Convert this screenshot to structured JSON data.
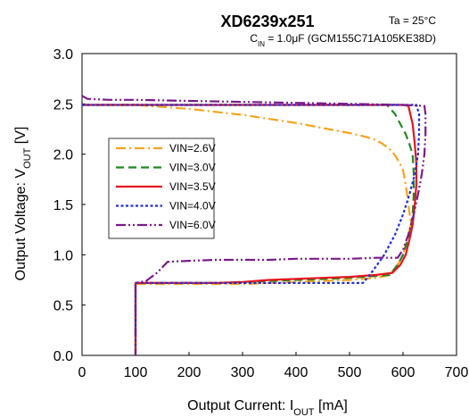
{
  "chart_data": {
    "type": "line",
    "title": "XD6239x251",
    "condition_temperature": "Ta = 25°C",
    "condition_capacitor": {
      "prefix": "C",
      "subscript": "IN",
      "rest": " = 1.0μF (GCM155C71A105KE38D)"
    },
    "xlabel": {
      "prefix": "Output Current: I",
      "subscript": "OUT",
      "suffix": " [mA]"
    },
    "ylabel": {
      "prefix": "Output Voltage: V",
      "subscript": "OUT",
      "suffix": " [V]"
    },
    "xlim": [
      0,
      700
    ],
    "ylim": [
      0,
      3.0
    ],
    "x_ticks": [
      "0",
      "100",
      "200",
      "300",
      "400",
      "500",
      "600",
      "700"
    ],
    "y_ticks": [
      "0.0",
      "0.5",
      "1.0",
      "1.5",
      "2.0",
      "2.5",
      "3.0"
    ],
    "grid": false,
    "legend_position": "left-middle",
    "series": [
      {
        "name": "VIN=2.6V",
        "color": "#f7a21b",
        "style": "dashdot",
        "points": [
          [
            0,
            2.49
          ],
          [
            100,
            2.49
          ],
          [
            150,
            2.47
          ],
          [
            200,
            2.45
          ],
          [
            250,
            2.42
          ],
          [
            300,
            2.39
          ],
          [
            350,
            2.35
          ],
          [
            400,
            2.31
          ],
          [
            450,
            2.26
          ],
          [
            500,
            2.21
          ],
          [
            525,
            2.18
          ],
          [
            545,
            2.15
          ],
          [
            560,
            2.11
          ],
          [
            575,
            2.05
          ],
          [
            585,
            1.99
          ],
          [
            595,
            1.9
          ],
          [
            600,
            1.84
          ]
        ],
        "fold": [
          [
            600,
            1.84
          ],
          [
            605,
            1.7
          ],
          [
            610,
            1.5
          ],
          [
            615,
            1.3
          ],
          [
            610,
            1.2
          ],
          [
            605,
            1.1
          ],
          [
            600,
            1.0
          ],
          [
            590,
            0.9
          ],
          [
            575,
            0.8
          ],
          [
            550,
            0.77
          ],
          [
            525,
            0.76
          ],
          [
            500,
            0.75
          ],
          [
            450,
            0.74
          ],
          [
            400,
            0.73
          ],
          [
            350,
            0.72
          ],
          [
            300,
            0.71
          ],
          [
            250,
            0.71
          ],
          [
            100,
            0.71
          ],
          [
            100,
            0
          ]
        ]
      },
      {
        "name": "VIN=3.0V",
        "color": "#1f8a1f",
        "style": "dash",
        "points": [
          [
            0,
            2.49
          ],
          [
            100,
            2.49
          ],
          [
            200,
            2.49
          ],
          [
            300,
            2.49
          ],
          [
            400,
            2.49
          ],
          [
            500,
            2.49
          ],
          [
            570,
            2.49
          ],
          [
            585,
            2.4
          ],
          [
            595,
            2.3
          ],
          [
            605,
            2.2
          ],
          [
            612,
            2.1
          ],
          [
            618,
            2.0
          ]
        ],
        "fold": [
          [
            618,
            2.0
          ],
          [
            620,
            1.8
          ],
          [
            620,
            1.6
          ],
          [
            618,
            1.4
          ],
          [
            612,
            1.2
          ],
          [
            600,
            1.0
          ],
          [
            590,
            0.9
          ],
          [
            575,
            0.8
          ],
          [
            550,
            0.79
          ],
          [
            525,
            0.78
          ],
          [
            500,
            0.77
          ],
          [
            450,
            0.76
          ],
          [
            400,
            0.75
          ],
          [
            350,
            0.74
          ],
          [
            300,
            0.73
          ],
          [
            250,
            0.72
          ],
          [
            100,
            0.72
          ],
          [
            100,
            0
          ]
        ]
      },
      {
        "name": "VIN=3.5V",
        "color": "#e8141c",
        "style": "solid",
        "points": [
          [
            0,
            2.49
          ],
          [
            100,
            2.49
          ],
          [
            200,
            2.49
          ],
          [
            300,
            2.49
          ],
          [
            400,
            2.49
          ],
          [
            500,
            2.49
          ],
          [
            600,
            2.49
          ],
          [
            610,
            2.48
          ],
          [
            618,
            2.3
          ],
          [
            622,
            2.1
          ],
          [
            625,
            1.9
          ]
        ],
        "fold": [
          [
            625,
            1.9
          ],
          [
            625,
            1.7
          ],
          [
            622,
            1.5
          ],
          [
            618,
            1.3
          ],
          [
            612,
            1.15
          ],
          [
            605,
            1.0
          ],
          [
            595,
            0.9
          ],
          [
            580,
            0.82
          ],
          [
            550,
            0.8
          ],
          [
            525,
            0.79
          ],
          [
            500,
            0.78
          ],
          [
            450,
            0.77
          ],
          [
            400,
            0.76
          ],
          [
            350,
            0.75
          ],
          [
            300,
            0.73
          ],
          [
            250,
            0.72
          ],
          [
            100,
            0.72
          ],
          [
            100,
            0
          ]
        ]
      },
      {
        "name": "VIN=4.0V",
        "color": "#1c2ee0",
        "style": "dot",
        "points": [
          [
            0,
            2.49
          ],
          [
            100,
            2.49
          ],
          [
            200,
            2.49
          ],
          [
            300,
            2.49
          ],
          [
            400,
            2.49
          ],
          [
            500,
            2.49
          ],
          [
            600,
            2.49
          ],
          [
            625,
            2.49
          ],
          [
            630,
            2.4
          ],
          [
            630,
            2.2
          ]
        ],
        "fold": [
          [
            630,
            2.2
          ],
          [
            628,
            2.0
          ],
          [
            622,
            1.8
          ],
          [
            612,
            1.6
          ],
          [
            600,
            1.4
          ],
          [
            585,
            1.2
          ],
          [
            565,
            1.0
          ],
          [
            545,
            0.85
          ],
          [
            530,
            0.75
          ],
          [
            525,
            0.72
          ],
          [
            500,
            0.72
          ],
          [
            400,
            0.72
          ],
          [
            300,
            0.72
          ],
          [
            200,
            0.72
          ],
          [
            100,
            0.72
          ],
          [
            100,
            0
          ]
        ]
      },
      {
        "name": "VIN=6.0V",
        "color": "#7b1a8c",
        "style": "dashdotdot",
        "points": [
          [
            0,
            2.58
          ],
          [
            10,
            2.55
          ],
          [
            50,
            2.54
          ],
          [
            100,
            2.54
          ],
          [
            200,
            2.53
          ],
          [
            300,
            2.52
          ],
          [
            400,
            2.51
          ],
          [
            500,
            2.5
          ],
          [
            600,
            2.49
          ],
          [
            640,
            2.48
          ],
          [
            642,
            2.4
          ],
          [
            642,
            2.2
          ]
        ],
        "fold": [
          [
            642,
            2.2
          ],
          [
            640,
            2.0
          ],
          [
            635,
            1.8
          ],
          [
            628,
            1.6
          ],
          [
            620,
            1.4
          ],
          [
            610,
            1.2
          ],
          [
            600,
            1.05
          ],
          [
            590,
            0.97
          ],
          [
            550,
            0.97
          ],
          [
            500,
            0.96
          ],
          [
            450,
            0.96
          ],
          [
            400,
            0.96
          ],
          [
            350,
            0.95
          ],
          [
            300,
            0.95
          ],
          [
            250,
            0.95
          ],
          [
            200,
            0.94
          ],
          [
            160,
            0.93
          ],
          [
            140,
            0.82
          ],
          [
            120,
            0.74
          ],
          [
            100,
            0.72
          ],
          [
            100,
            0
          ]
        ]
      }
    ]
  }
}
